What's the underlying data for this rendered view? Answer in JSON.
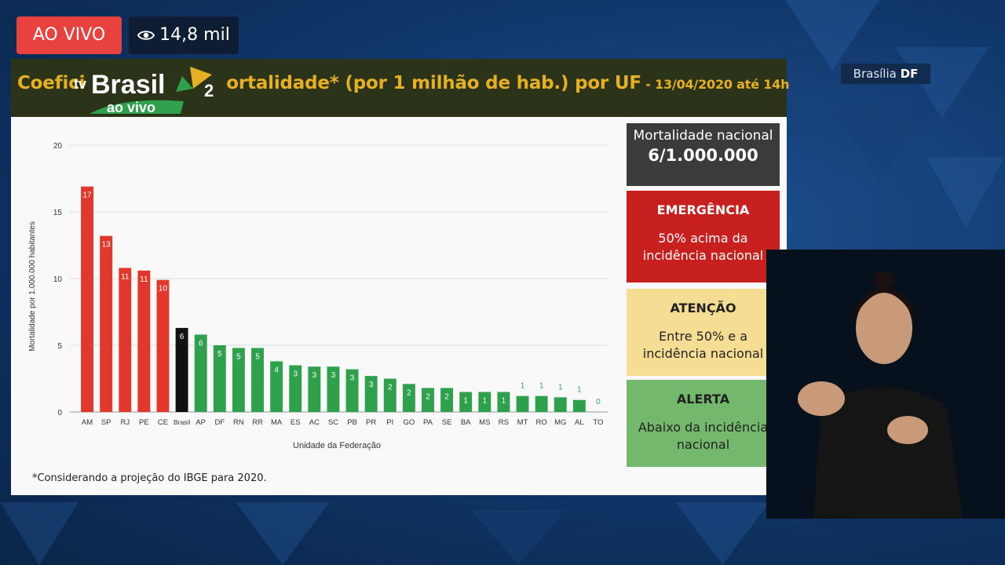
{
  "live_badge": "AO VIVO",
  "viewers": "14,8 mil",
  "location": {
    "city": "Brasília",
    "state": "DF"
  },
  "logo": {
    "prefix": "tv",
    "name": "Brasil",
    "number": "2",
    "sub": "ao vivo"
  },
  "slide": {
    "title_start": "Coefici",
    "title_mid": "ortalidade* (por 1 milhão de hab.) por UF",
    "title_date": " - 13/04/2020 até 14h",
    "footnote": "*Considerando a projeção do IBGE para 2020."
  },
  "legend": {
    "national": {
      "title": "Mortalidade nacional",
      "value": "6/1.000.000"
    },
    "emergency": {
      "title": "EMERGÊNCIA",
      "desc": "50% acima da incidência nacional"
    },
    "attention": {
      "title": "ATENÇÃO",
      "desc": "Entre 50% e a incidência nacional"
    },
    "alert": {
      "title": "ALERTA",
      "desc": "Abaixo da incidência nacional"
    }
  },
  "colors": {
    "red": "#e2382c",
    "black": "#111111",
    "green": "#2fa04c",
    "title": "#e6b022"
  },
  "chart_data": {
    "type": "bar",
    "title": "",
    "xlabel": "Unidade da Federação",
    "ylabel": "Mortalidade por 1.000.000 habitantes",
    "ylim": [
      0,
      20
    ],
    "yticks": [
      0,
      5,
      10,
      15,
      20
    ],
    "grid": true,
    "categories": [
      "AM",
      "SP",
      "RJ",
      "PE",
      "CE",
      "Brasil",
      "AP",
      "DF",
      "RN",
      "RR",
      "MA",
      "ES",
      "AC",
      "SC",
      "PB",
      "PR",
      "PI",
      "GO",
      "PA",
      "SE",
      "BA",
      "MS",
      "RS",
      "MT",
      "RO",
      "MG",
      "AL",
      "TO"
    ],
    "values": [
      16.9,
      13.2,
      10.8,
      10.6,
      9.9,
      6.3,
      5.8,
      5.0,
      4.8,
      4.8,
      3.8,
      3.5,
      3.4,
      3.4,
      3.2,
      2.7,
      2.5,
      2.1,
      1.8,
      1.8,
      1.5,
      1.5,
      1.5,
      1.2,
      1.2,
      1.1,
      0.9,
      0.0
    ],
    "labels": [
      "17",
      "13",
      "11",
      "11",
      "10",
      "6",
      "6",
      "5",
      "5",
      "5",
      "4",
      "3",
      "3",
      "3",
      "3",
      "3",
      "2",
      "2",
      "2",
      "2",
      "1",
      "1",
      "1",
      "1",
      "1",
      "1",
      "1",
      "0"
    ],
    "bar_colors": [
      "red",
      "red",
      "red",
      "red",
      "red",
      "black",
      "green",
      "green",
      "green",
      "green",
      "green",
      "green",
      "green",
      "green",
      "green",
      "green",
      "green",
      "green",
      "green",
      "green",
      "green",
      "green",
      "green",
      "green",
      "green",
      "green",
      "green",
      "green"
    ]
  }
}
